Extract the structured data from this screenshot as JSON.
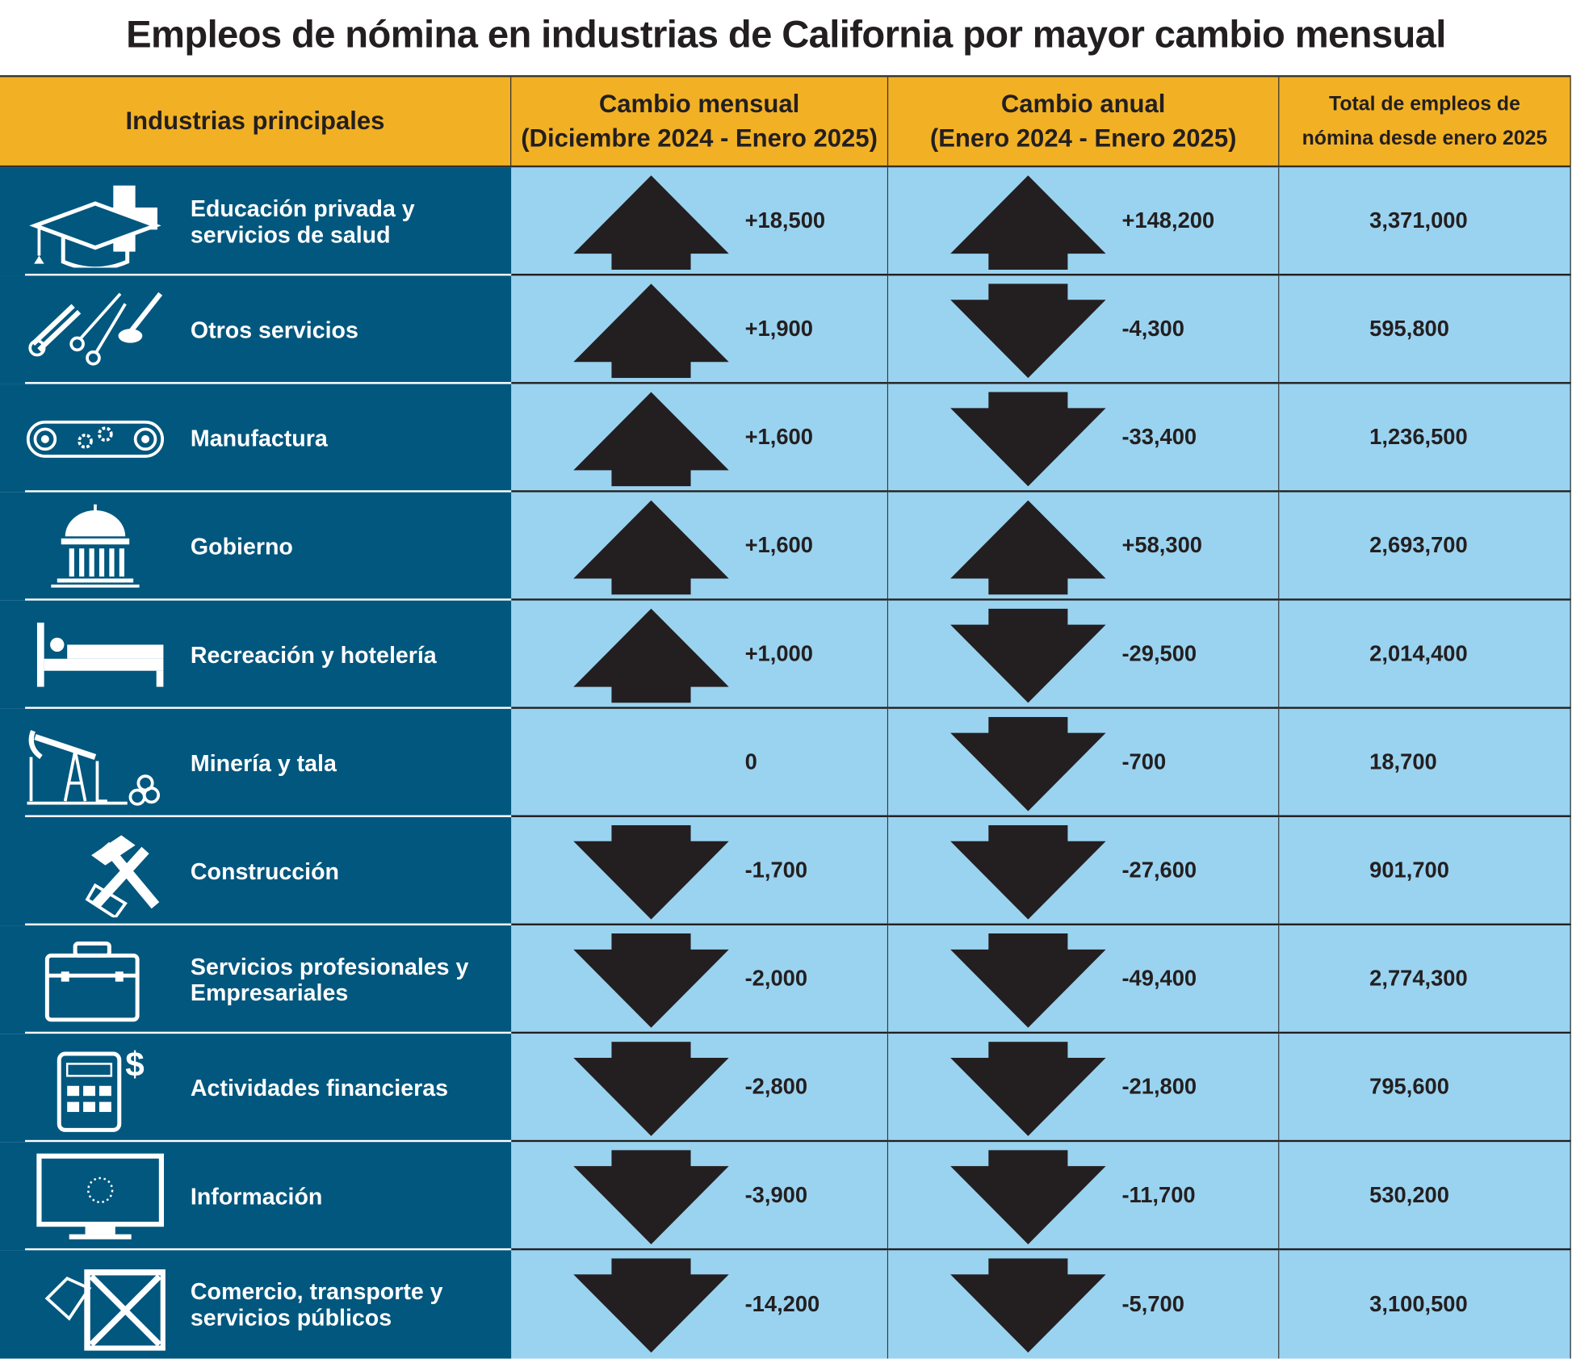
{
  "title": "Empleos de nómina en industrias de California por mayor cambio mensual",
  "colors": {
    "header": "#f2b124",
    "label_bg": "#02577e",
    "cell_bg": "#9ad3f0",
    "arrow": "#231f20"
  },
  "headers": {
    "industry": "Industrias principales",
    "monthly_1": "Cambio mensual",
    "monthly_2": "(Diciembre 2024 - Enero 2025)",
    "annual_1": "Cambio anual",
    "annual_2": "(Enero 2024 - Enero 2025)",
    "total_1": "Total de empleos de",
    "total_2": "nómina desde enero 2025"
  },
  "rows": [
    {
      "industry": "Educación privada y servicios de salud",
      "icon": "graduation-cap-medical-cross-icon",
      "monthly": "+18,500",
      "monthly_dir": "up",
      "annual": "+148,200",
      "annual_dir": "up",
      "total": "3,371,000"
    },
    {
      "industry": "Otros servicios",
      "icon": "tools-scissors-icon",
      "monthly": "+1,900",
      "monthly_dir": "up",
      "annual": "-4,300",
      "annual_dir": "down",
      "total": "595,800"
    },
    {
      "industry": "Manufactura",
      "icon": "conveyor-gears-icon",
      "monthly": "+1,600",
      "monthly_dir": "up",
      "annual": "-33,400",
      "annual_dir": "down",
      "total": "1,236,500"
    },
    {
      "industry": "Gobierno",
      "icon": "capitol-building-icon",
      "monthly": "+1,600",
      "monthly_dir": "up",
      "annual": "+58,300",
      "annual_dir": "up",
      "total": "2,693,700"
    },
    {
      "industry": "Recreación y hotelería",
      "icon": "bed-icon",
      "monthly": "+1,000",
      "monthly_dir": "up",
      "annual": "-29,500",
      "annual_dir": "down",
      "total": "2,014,400"
    },
    {
      "industry": "Minería y tala",
      "icon": "oil-pump-logs-icon",
      "monthly": "0",
      "monthly_dir": "none",
      "annual": "-700",
      "annual_dir": "down",
      "total": "18,700"
    },
    {
      "industry": "Construcción",
      "icon": "hammer-saw-icon",
      "monthly": "-1,700",
      "monthly_dir": "down",
      "annual": "-27,600",
      "annual_dir": "down",
      "total": "901,700"
    },
    {
      "industry": "Servicios profesionales y Empresariales",
      "icon": "briefcase-icon",
      "monthly": "-2,000",
      "monthly_dir": "down",
      "annual": "-49,400",
      "annual_dir": "down",
      "total": "2,774,300"
    },
    {
      "industry": "Actividades financieras",
      "icon": "calculator-dollar-icon",
      "monthly": "-2,800",
      "monthly_dir": "down",
      "annual": "-21,800",
      "annual_dir": "down",
      "total": "795,600"
    },
    {
      "industry": "Información",
      "icon": "computer-monitor-icon",
      "monthly": "-3,900",
      "monthly_dir": "down",
      "annual": "-11,700",
      "annual_dir": "down",
      "total": "530,200"
    },
    {
      "industry": "Comercio, transporte y servicios públicos",
      "icon": "price-tag-crate-icon",
      "monthly": "-14,200",
      "monthly_dir": "down",
      "annual": "-5,700",
      "annual_dir": "down",
      "total": "3,100,500"
    }
  ]
}
